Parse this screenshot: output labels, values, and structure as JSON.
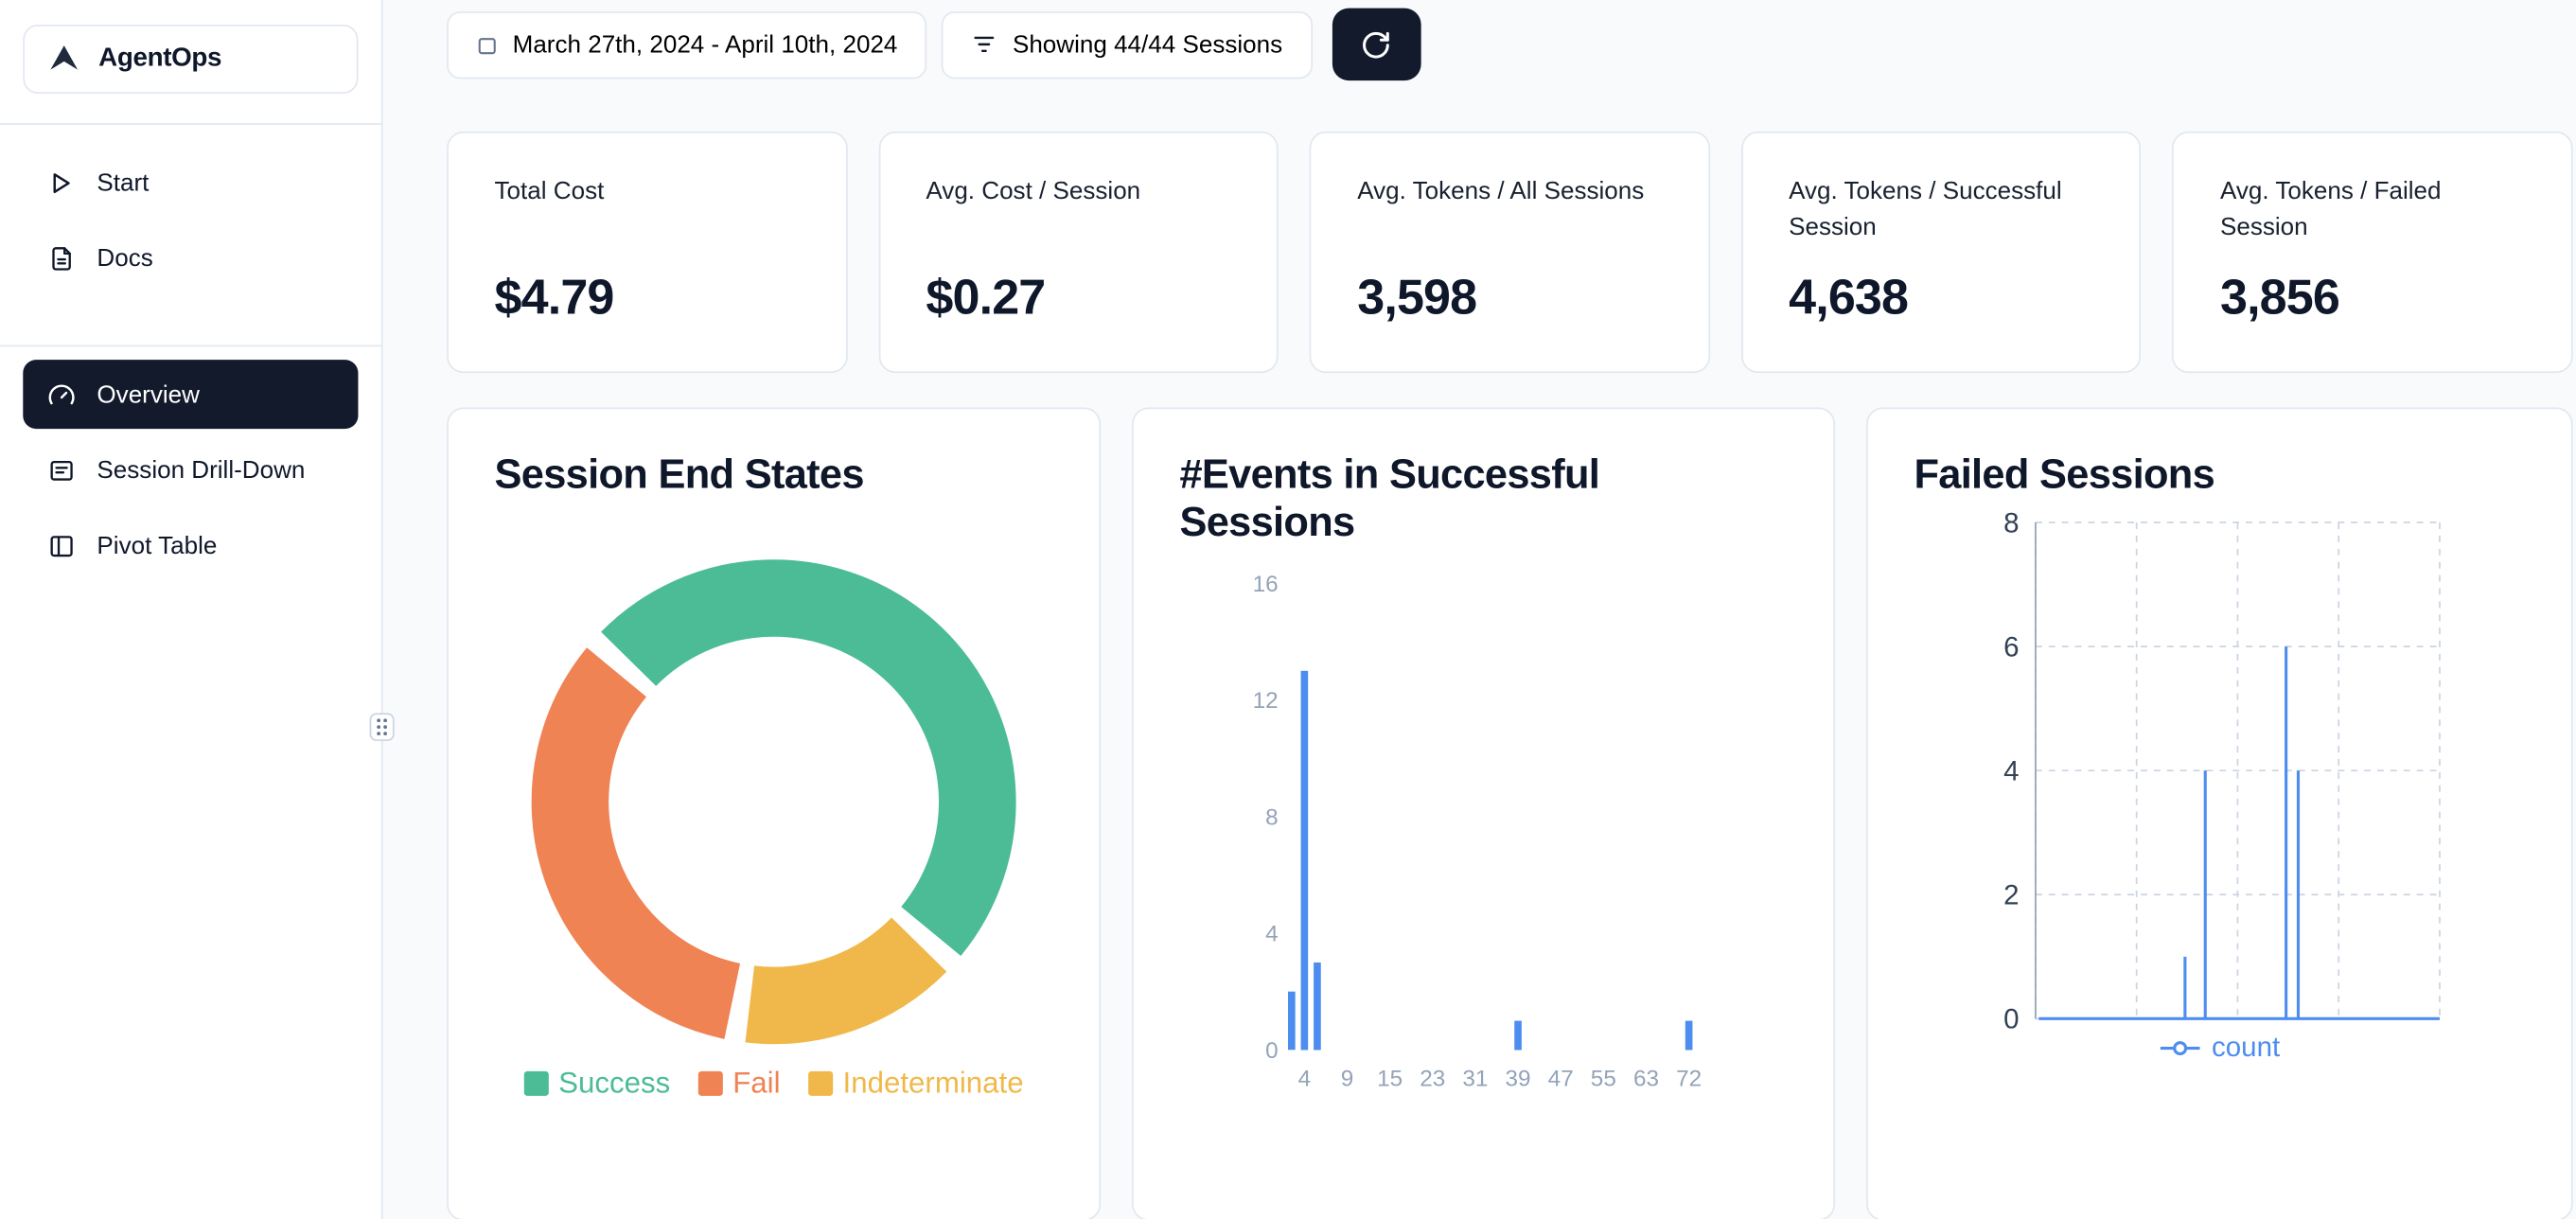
{
  "theme": {
    "accent_dark": "#121a2c",
    "page_bg": "#f8fafc",
    "card_border": "#e2e8f0",
    "chart_blue": "#4d8df0",
    "success_green": "#4cbc97",
    "fail_orange": "#ef8354",
    "indeterminate_yellow": "#f0b84a",
    "muted_text": "#94a3b8"
  },
  "sidebar": {
    "brand": "AgentOps",
    "nav_top": [
      {
        "label": "Start",
        "icon": "play-icon"
      },
      {
        "label": "Docs",
        "icon": "docs-icon"
      }
    ],
    "nav_main": [
      {
        "label": "Overview",
        "icon": "gauge-icon",
        "active": true
      },
      {
        "label": "Session Drill-Down",
        "icon": "drill-down-icon",
        "active": false
      },
      {
        "label": "Pivot Table",
        "icon": "pivot-table-icon",
        "active": false
      }
    ]
  },
  "toolbar": {
    "date_range": "March 27th, 2024 - April 10th, 2024",
    "date_icon": "calendar-icon",
    "sessions_filter": "Showing 44/44 Sessions",
    "filter_icon": "filter-icon",
    "refresh_icon": "refresh-icon"
  },
  "stats": [
    {
      "label": "Total Cost",
      "value": "$4.79"
    },
    {
      "label": "Avg. Cost / Session",
      "value": "$0.27"
    },
    {
      "label": "Avg. Tokens / All Sessions",
      "value": "3,598"
    },
    {
      "label": "Avg. Tokens / Successful Session",
      "value": "4,638"
    },
    {
      "label": "Avg. Tokens / Failed Session",
      "value": "3,856"
    }
  ],
  "chart_data": [
    {
      "type": "pie",
      "donut": true,
      "title": "Session End States",
      "labels": [
        "Success",
        "Fail",
        "Indeterminate"
      ],
      "values": [
        22,
        15,
        7
      ],
      "colors": [
        "#4cbc97",
        "#ef8354",
        "#f0b84a"
      ],
      "start_angle": -48,
      "draw_sequence": [
        0,
        2,
        1
      ],
      "legend_position": "bottom"
    },
    {
      "type": "bar",
      "title": "#Events in Successful Sessions",
      "x_ticks": [
        4,
        9,
        15,
        23,
        31,
        39,
        47,
        55,
        63,
        72
      ],
      "y_ticks": [
        0,
        4,
        8,
        12,
        16
      ],
      "ylim": [
        0,
        16
      ],
      "bars": [
        {
          "x": 2.5,
          "count": 2
        },
        {
          "x": 4,
          "count": 13
        },
        {
          "x": 5.5,
          "count": 3
        },
        {
          "x": 39,
          "count": 1
        },
        {
          "x": 72,
          "count": 1
        }
      ],
      "color": "#4d8df0",
      "grid": false
    },
    {
      "type": "line",
      "title": "Failed Sessions",
      "series_name": "count",
      "y_ticks": [
        0,
        2,
        4,
        6,
        8
      ],
      "ylim": [
        0,
        8
      ],
      "baseline": 0,
      "spikes": [
        {
          "x_frac": 0.37,
          "count": 1
        },
        {
          "x_frac": 0.42,
          "count": 4
        },
        {
          "x_frac": 0.62,
          "count": 6
        },
        {
          "x_frac": 0.65,
          "count": 4
        }
      ],
      "color": "#4d8df0",
      "grid": "dashed",
      "legend_position": "bottom"
    }
  ]
}
